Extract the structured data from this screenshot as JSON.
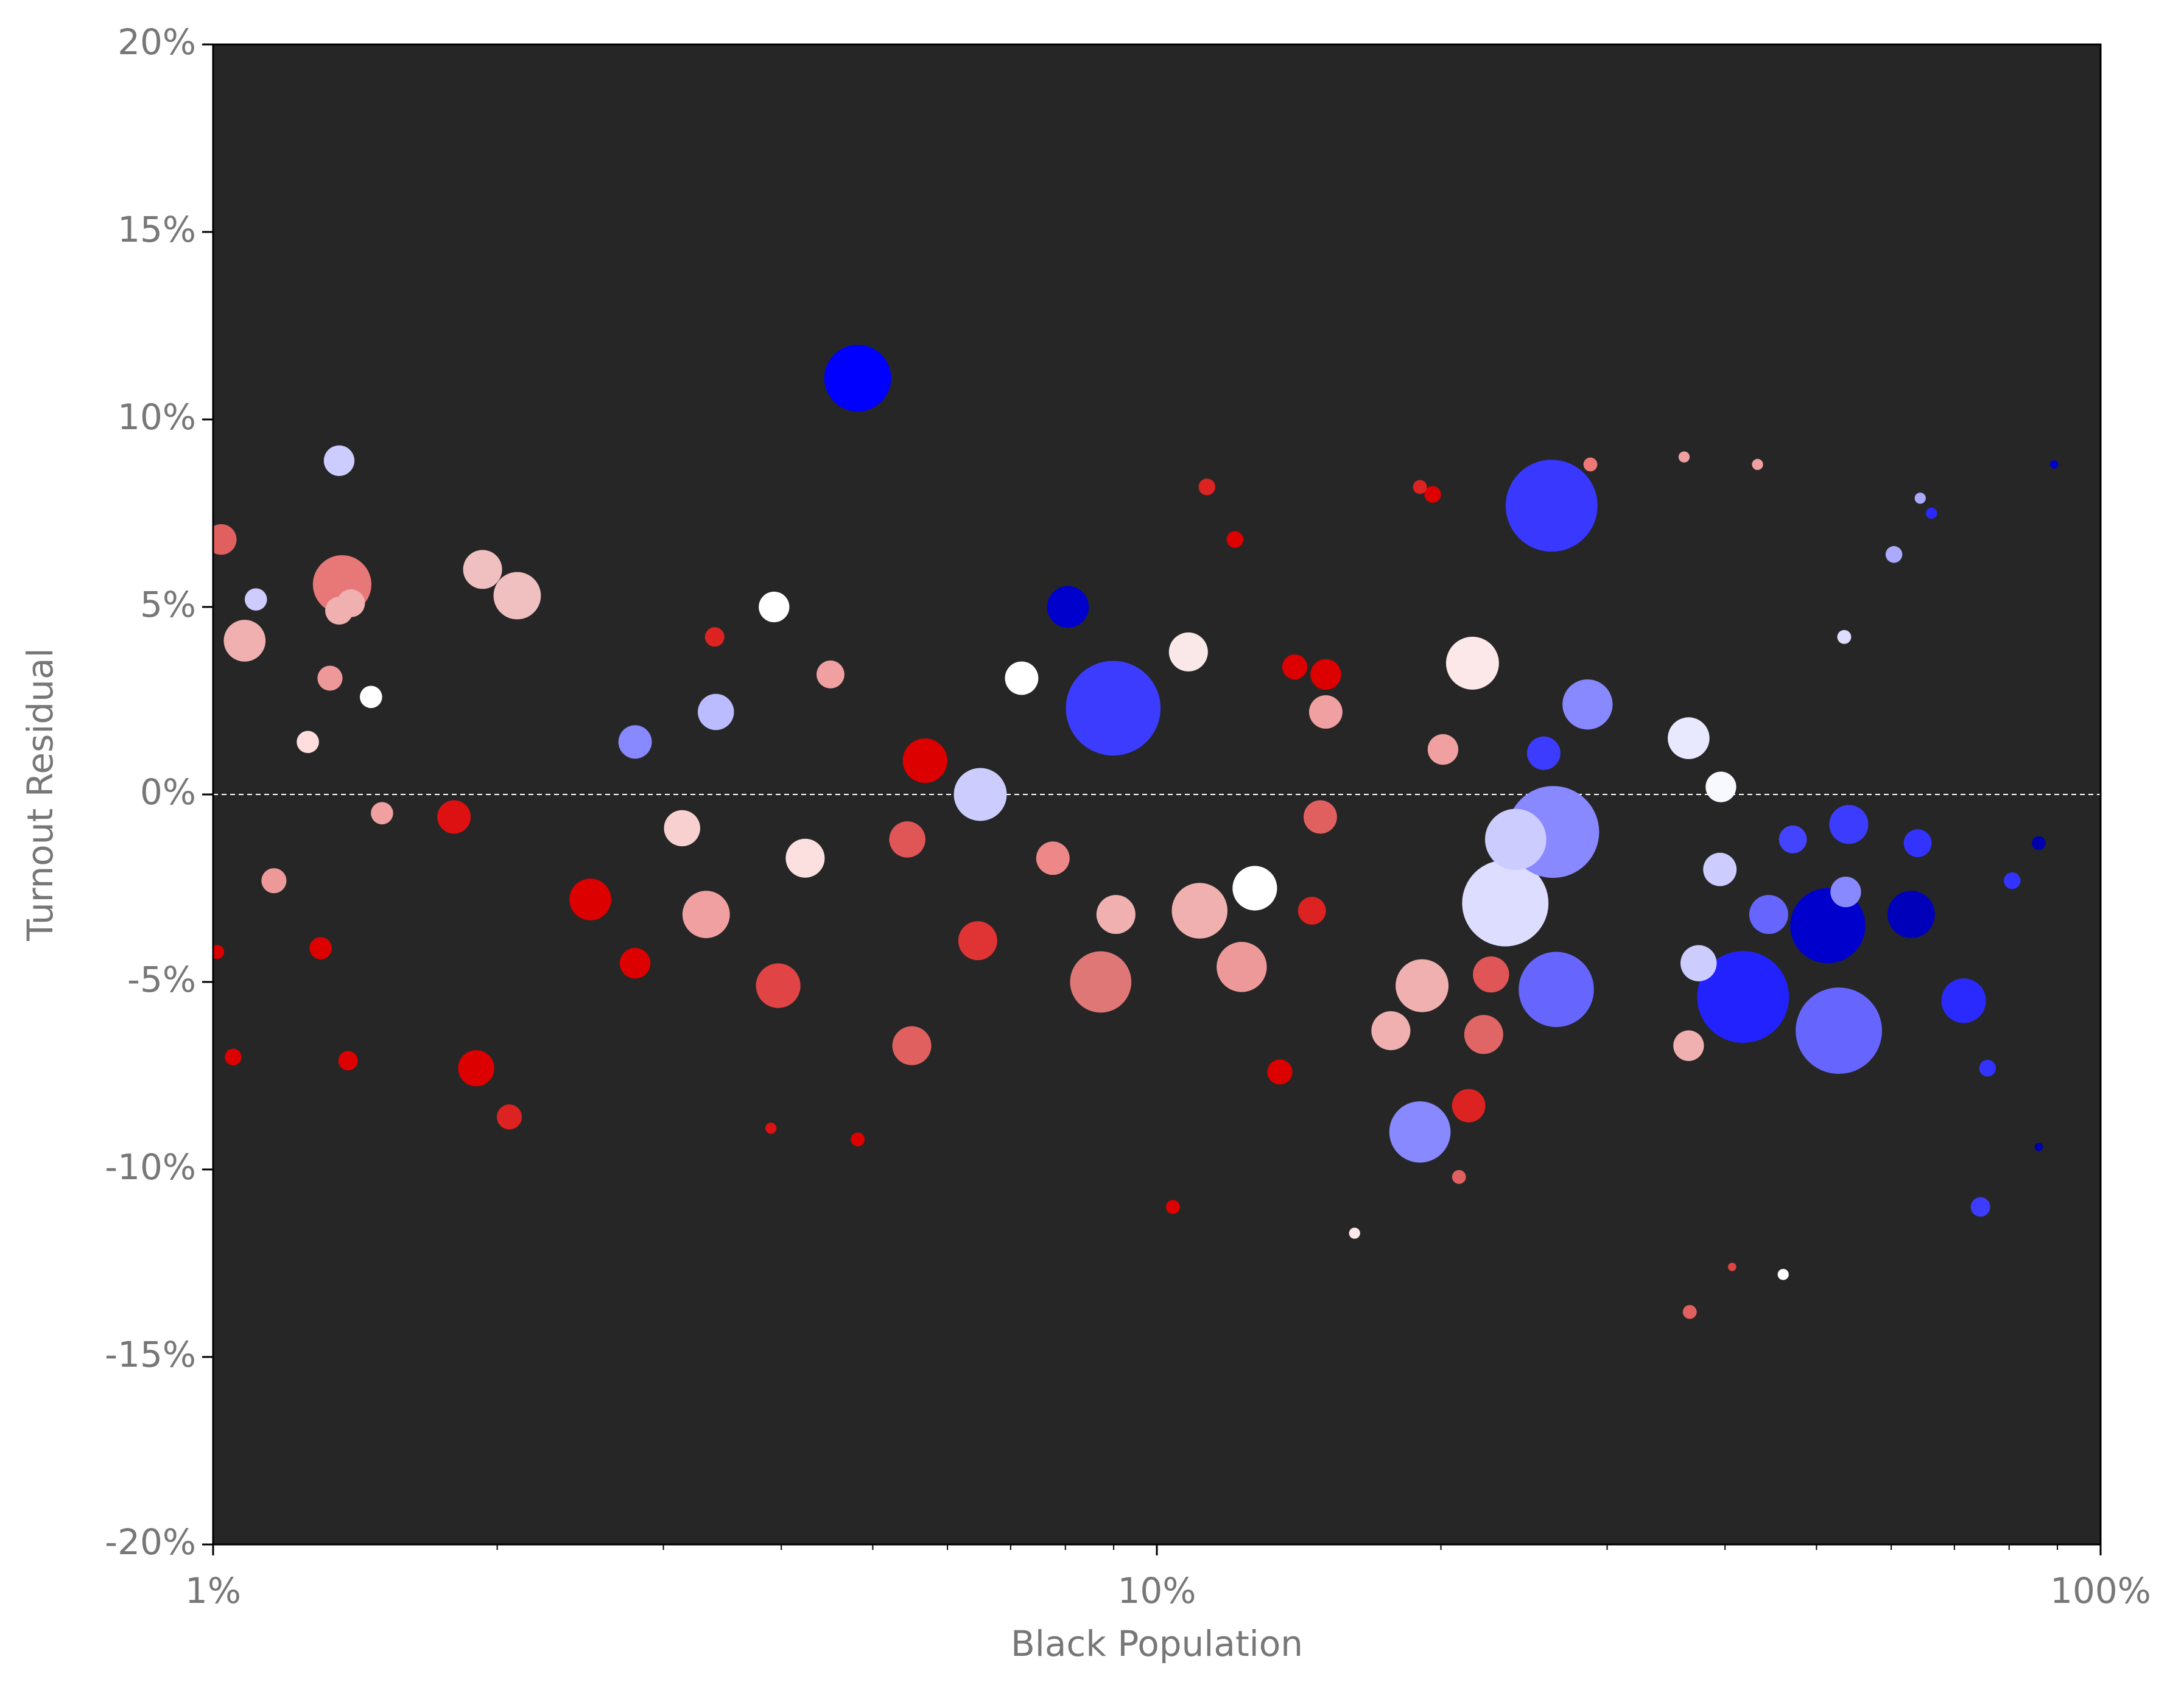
{
  "chart_data": {
    "type": "scatter",
    "xlabel": "Black Population",
    "ylabel": "Turnout Residual",
    "xscale": "log",
    "xlim": [
      1,
      100
    ],
    "xticks": [
      {
        "value": 1,
        "label": "1%"
      },
      {
        "value": 10,
        "label": "10%"
      },
      {
        "value": 100,
        "label": "100%"
      }
    ],
    "xminorticks": [
      2,
      3,
      4,
      5,
      6,
      7,
      8,
      9,
      20,
      30,
      40,
      50,
      60,
      70,
      80,
      90
    ],
    "ylim": [
      -20,
      20
    ],
    "yticks": [
      {
        "value": -20,
        "label": "-20%"
      },
      {
        "value": -15,
        "label": "-15%"
      },
      {
        "value": -10,
        "label": "-10%"
      },
      {
        "value": -5,
        "label": "-5%"
      },
      {
        "value": 0,
        "label": "0%"
      },
      {
        "value": 5,
        "label": "5%"
      },
      {
        "value": 10,
        "label": "10%"
      },
      {
        "value": 15,
        "label": "15%"
      },
      {
        "value": 20,
        "label": "20%"
      }
    ],
    "reference_line": 0,
    "background": "#262626",
    "x": [
      4.82,
      1.36,
      1.02,
      1.37,
      1.93,
      2.1,
      1.08,
      1.11,
      26.2,
      8.99,
      8.05,
      3.93,
      10.8,
      21.6,
      28.6,
      36.6,
      6.5,
      5.68,
      3.41,
      2.8,
      1.47,
      23.4,
      26.3,
      24.0,
      26.5,
      41.8,
      52.8,
      51.4,
      63.0,
      71.6,
      19.0,
      12.7,
      11.1,
      8.72,
      9.05,
      12.3,
      19.1,
      22.2,
      21.4,
      17.7,
      3.33,
      3.97,
      2.51,
      2.8,
      1.9,
      2.06,
      5.5,
      6.46,
      7.76,
      4.24,
      3.14,
      5.44,
      1.8,
      1.16,
      1.51,
      1.33,
      1.26,
      54.1,
      47.2,
      64.0,
      44.5,
      53.7,
      39.5,
      39.6,
      37.5,
      36.6,
      89.3,
      86.0,
      86.0,
      74.6,
      75.9,
      80.6,
      66.2,
      60.4,
      46.1,
      36.7,
      40.7,
      16.2,
      20.9,
      10.4,
      4.82,
      3.9,
      1.05,
      1.01,
      19.6,
      11.3,
      12.1,
      28.8,
      43.3,
      36.2,
      19.0,
      14.0,
      15.1,
      15.1,
      14.9,
      14.6,
      13.5,
      7.19,
      4.51,
      3.4,
      1.36,
      1.4,
      1.3,
      1.39,
      64.4,
      53.5,
      20.1,
      25.7,
      22.6
    ],
    "values": [
      11.1,
      8.9,
      6.8,
      5.6,
      6.0,
      5.3,
      4.1,
      5.2,
      7.7,
      2.3,
      5.0,
      5.0,
      3.8,
      3.5,
      2.4,
      1.5,
      0.0,
      0.9,
      2.2,
      1.4,
      2.6,
      -2.9,
      -1.0,
      -1.2,
      -5.2,
      -5.4,
      -6.3,
      -3.5,
      -3.2,
      -5.5,
      -9.0,
      -2.5,
      -3.1,
      -5.0,
      -3.2,
      -4.6,
      -5.1,
      -6.4,
      -8.3,
      -6.3,
      -3.2,
      -5.1,
      -2.8,
      -4.5,
      -7.3,
      -8.6,
      -6.7,
      -3.9,
      -1.7,
      -1.7,
      -0.9,
      -1.2,
      -0.6,
      -2.3,
      -0.5,
      3.1,
      1.4,
      -0.8,
      -1.2,
      -1.3,
      -3.2,
      -2.6,
      -2.0,
      0.2,
      -4.5,
      -6.7,
      8.8,
      -9.4,
      -1.3,
      -11.0,
      -7.3,
      -2.3,
      7.5,
      6.4,
      -12.8,
      -13.8,
      -12.6,
      -11.7,
      -10.2,
      -11.0,
      -9.2,
      -8.9,
      -7.0,
      -4.2,
      8.0,
      8.2,
      6.8,
      8.8,
      8.8,
      9.0,
      8.2,
      3.4,
      3.2,
      2.2,
      -0.6,
      -3.1,
      -7.4,
      3.1,
      3.2,
      4.2,
      4.9,
      5.1,
      -4.1,
      -7.1,
      7.9,
      4.2,
      1.2,
      1.1,
      -4.8
    ],
    "sizes": [
      24,
      11,
      11,
      21,
      14,
      17,
      15,
      8,
      33,
      34,
      15,
      11,
      14,
      19,
      18,
      15,
      19,
      16,
      13,
      12,
      8,
      31,
      33,
      22,
      27,
      33,
      31,
      27,
      17,
      16,
      22,
      16,
      20,
      22,
      14,
      18,
      19,
      14,
      12,
      14,
      17,
      16,
      15,
      11,
      13,
      9,
      14,
      14,
      12,
      14,
      13,
      13,
      12,
      9,
      8,
      9,
      8,
      14,
      10,
      10,
      14,
      11,
      12,
      11,
      13,
      11,
      3,
      3,
      5,
      7,
      6,
      6,
      4,
      6,
      4,
      5,
      3,
      4,
      5,
      5,
      5,
      4,
      6,
      5,
      6,
      6,
      6,
      5,
      4,
      4,
      5,
      9,
      11,
      12,
      12,
      10,
      9,
      12,
      10,
      7,
      10,
      10,
      8,
      7,
      4,
      5,
      11,
      12,
      13
    ],
    "colors": [
      "#0000ff",
      "#ccccff",
      "#e06060",
      "#e87777",
      "#f0c0c0",
      "#f0c0c0",
      "#f0b0b0",
      "#ccccff",
      "#3838ff",
      "#3c3cff",
      "#0000cc",
      "#ffffff",
      "#fae8e8",
      "#fce8e8",
      "#8888ff",
      "#e8e8ff",
      "#ccccff",
      "#dd0000",
      "#bbbbff",
      "#8888ff",
      "#ffffff",
      "#ddddff",
      "#8888ff",
      "#ccccff",
      "#6666ff",
      "#2222ff",
      "#6666ff",
      "#0000cc",
      "#0000bb",
      "#2a2aff",
      "#8888ff",
      "#ffffff",
      "#f0b0b0",
      "#e07777",
      "#f0b0b0",
      "#ee9999",
      "#f0b0b0",
      "#e06666",
      "#dd2222",
      "#f0b0b0",
      "#f0a0a0",
      "#e04444",
      "#dd0000",
      "#dd0000",
      "#dd0000",
      "#dd2222",
      "#e06060",
      "#e03333",
      "#ee8888",
      "#fce0e0",
      "#f8d0d0",
      "#e05555",
      "#dd1111",
      "#ee9999",
      "#f0a0a0",
      "#ee9999",
      "#ffdddd",
      "#3c3cff",
      "#4444ff",
      "#3333ff",
      "#6666ff",
      "#8888ff",
      "#ccccff",
      "#f8f8ff",
      "#ccccff",
      "#f0b0b0",
      "#0000cc",
      "#0000aa",
      "#0000aa",
      "#3c3cff",
      "#3333ff",
      "#3333ff",
      "#2a2aff",
      "#aaaaff",
      "#ffffff",
      "#e06060",
      "#dd4444",
      "#fce8e8",
      "#e06060",
      "#dd0000",
      "#dd0000",
      "#dd1111",
      "#dd0000",
      "#dd0000",
      "#dd0000",
      "#dd2222",
      "#dd0000",
      "#ee7777",
      "#f0a0a0",
      "#f0a0a0",
      "#dd2222",
      "#dd0000",
      "#dd0000",
      "#f0a0a0",
      "#e06060",
      "#dd2222",
      "#dd0000",
      "#ffffff",
      "#f0a0a0",
      "#dd2222",
      "#f0b0b0",
      "#f0b0b0",
      "#dd0000",
      "#dd0000",
      "#aaaaff",
      "#ddddff",
      "#f0a0a0",
      "#3c3cff",
      "#e05555"
    ]
  }
}
